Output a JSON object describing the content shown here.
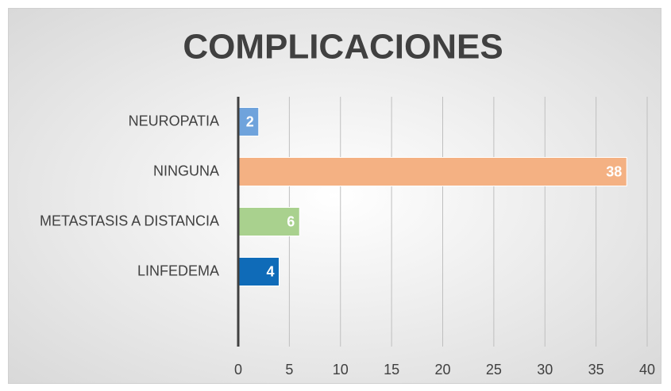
{
  "chart_data": {
    "type": "hbar",
    "title": "COMPLICACIONES",
    "categories": [
      "NEUROPATIA",
      "NINGUNA",
      "METASTASIS A DISTANCIA",
      "LINFEDEMA",
      null
    ],
    "values": [
      2,
      38,
      6,
      4,
      null
    ],
    "colors": [
      "#6fa3dc",
      "#f4b183",
      "#a9d18e",
      "#0f6bb8",
      null
    ],
    "xlim": [
      0,
      40
    ],
    "xticks": [
      0,
      5,
      10,
      15,
      20,
      25,
      30,
      35,
      40
    ],
    "grid": true
  }
}
